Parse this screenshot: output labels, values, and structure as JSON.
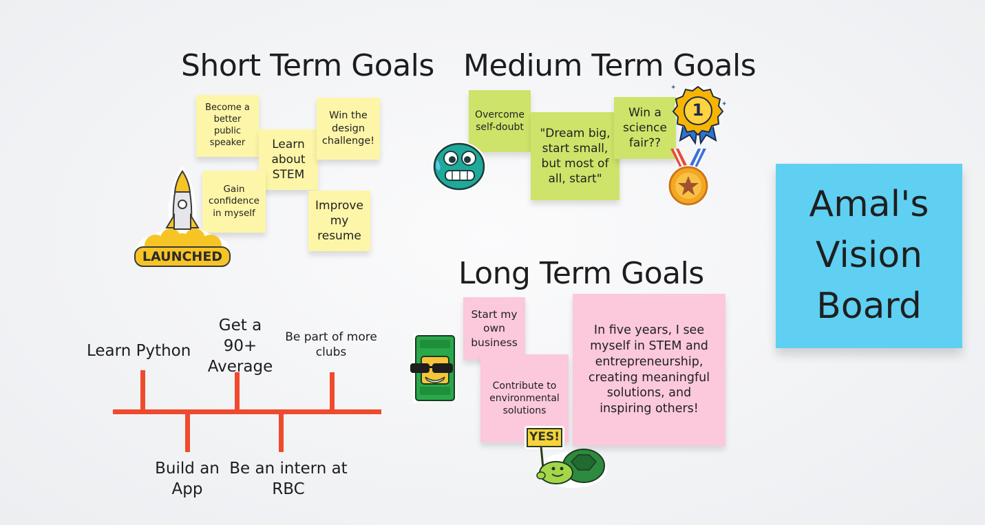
{
  "headings": {
    "short": "Short Term Goals",
    "medium": "Medium Term Goals",
    "long": "Long Term Goals"
  },
  "short_notes": {
    "public_speaker": "Become a better public speaker",
    "learn_stem": "Learn about STEM",
    "design_challenge": "Win the design challenge!",
    "confidence": "Gain confidence in myself",
    "resume": "Improve my resume"
  },
  "medium_notes": {
    "self_doubt": "Overcome self-doubt",
    "dream_big": "\"Dream big, start small, but most of all, start\"",
    "science_fair": "Win a science fair??"
  },
  "long_notes": {
    "business": "Start my own business",
    "environment": "Contribute to environmental solutions",
    "five_years": "In five years, I see myself in STEM and entrepreneurship, creating meaningful solutions, and inspiring others!"
  },
  "title_note": "Amal's Vision Board",
  "timeline": {
    "python": "Learn Python",
    "average": "Get a 90+ Average",
    "clubs": "Be part of more clubs",
    "app": "Build an App",
    "intern": "Be an intern at RBC"
  },
  "stickers": {
    "launched": "LAUNCHED",
    "yes": "YES!",
    "medal_number": "1"
  },
  "colors": {
    "yellow_note": "#fdf6a8",
    "green_note": "#cee36a",
    "pink_note": "#fbc8dc",
    "blue_note": "#5fd0f2",
    "timeline": "#f04a2e"
  }
}
